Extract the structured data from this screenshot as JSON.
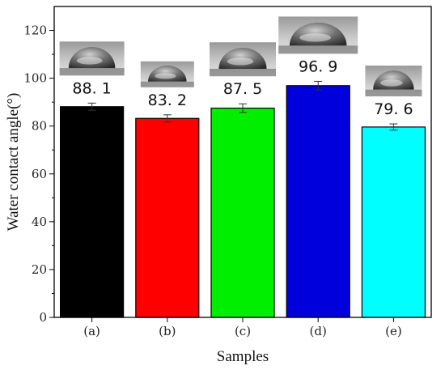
{
  "chart_data": {
    "type": "bar",
    "xlabel": "Samples",
    "ylabel": "Water contact angle(°)",
    "categories": [
      "(a)",
      "(b)",
      "(c)",
      "(d)",
      "(e)"
    ],
    "values": [
      88.1,
      83.2,
      87.5,
      96.9,
      79.6
    ],
    "value_labels": [
      "88. 1",
      "83. 2",
      "87. 5",
      "96. 9",
      "79. 6"
    ],
    "errors": [
      1.5,
      1.5,
      1.8,
      1.8,
      1.3
    ],
    "colors": [
      "#000000",
      "#ff0000",
      "#00ee00",
      "#0000dd",
      "#00ffff"
    ],
    "ylim": [
      0,
      130
    ],
    "yticks": [
      0,
      20,
      40,
      60,
      80,
      100,
      120
    ],
    "grid": false,
    "droplet_images": true
  }
}
